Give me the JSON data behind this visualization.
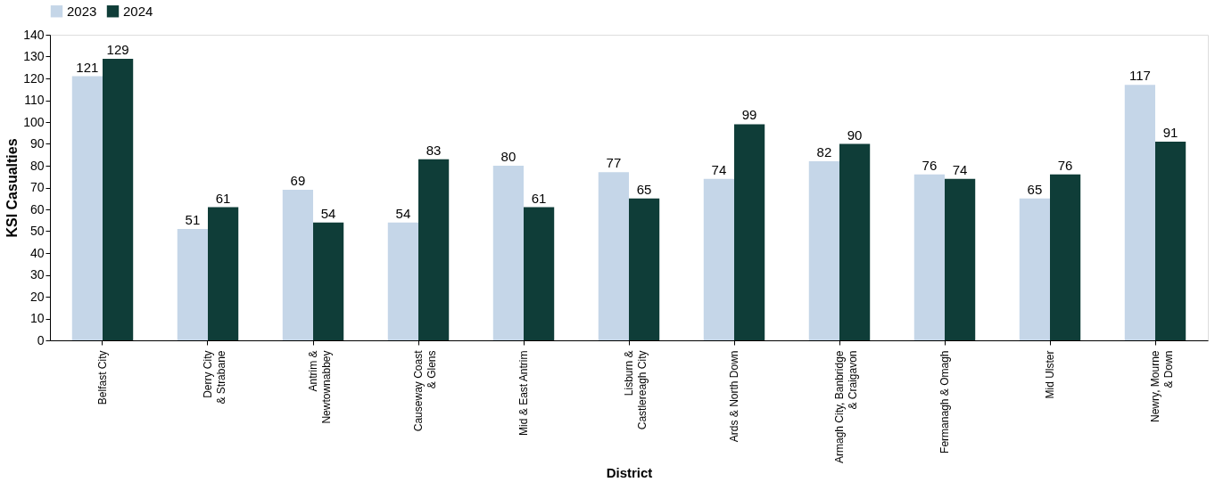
{
  "chart_data": {
    "type": "bar",
    "xlabel": "District",
    "ylabel": "KSI Casualties",
    "categories": [
      "Belfast City",
      "Derry City\n& Strabane",
      "Antrim &\nNewtownabbey",
      "Causeway Coast\n& Glens",
      "Mid & East Antrim",
      "Lisburn &\nCastlereagh City",
      "Ards & North Down",
      "Armagh City, Banbridge\n& Craigavon",
      "Fermanagh & Omagh",
      "Mid Ulster",
      "Newry, Mourne\n& Down"
    ],
    "series": [
      {
        "name": "2023",
        "color": "#c5d6e8",
        "values": [
          121,
          51,
          69,
          54,
          80,
          77,
          74,
          82,
          76,
          65,
          117
        ]
      },
      {
        "name": "2024",
        "color": "#0f3d38",
        "values": [
          129,
          61,
          54,
          83,
          61,
          65,
          99,
          90,
          74,
          76,
          91
        ]
      }
    ],
    "ylim": [
      0,
      140
    ],
    "yticks": [
      0,
      10,
      20,
      30,
      40,
      50,
      60,
      70,
      80,
      90,
      100,
      110,
      120,
      130,
      140
    ],
    "data_labels": true,
    "grid": false,
    "legend": "top"
  }
}
